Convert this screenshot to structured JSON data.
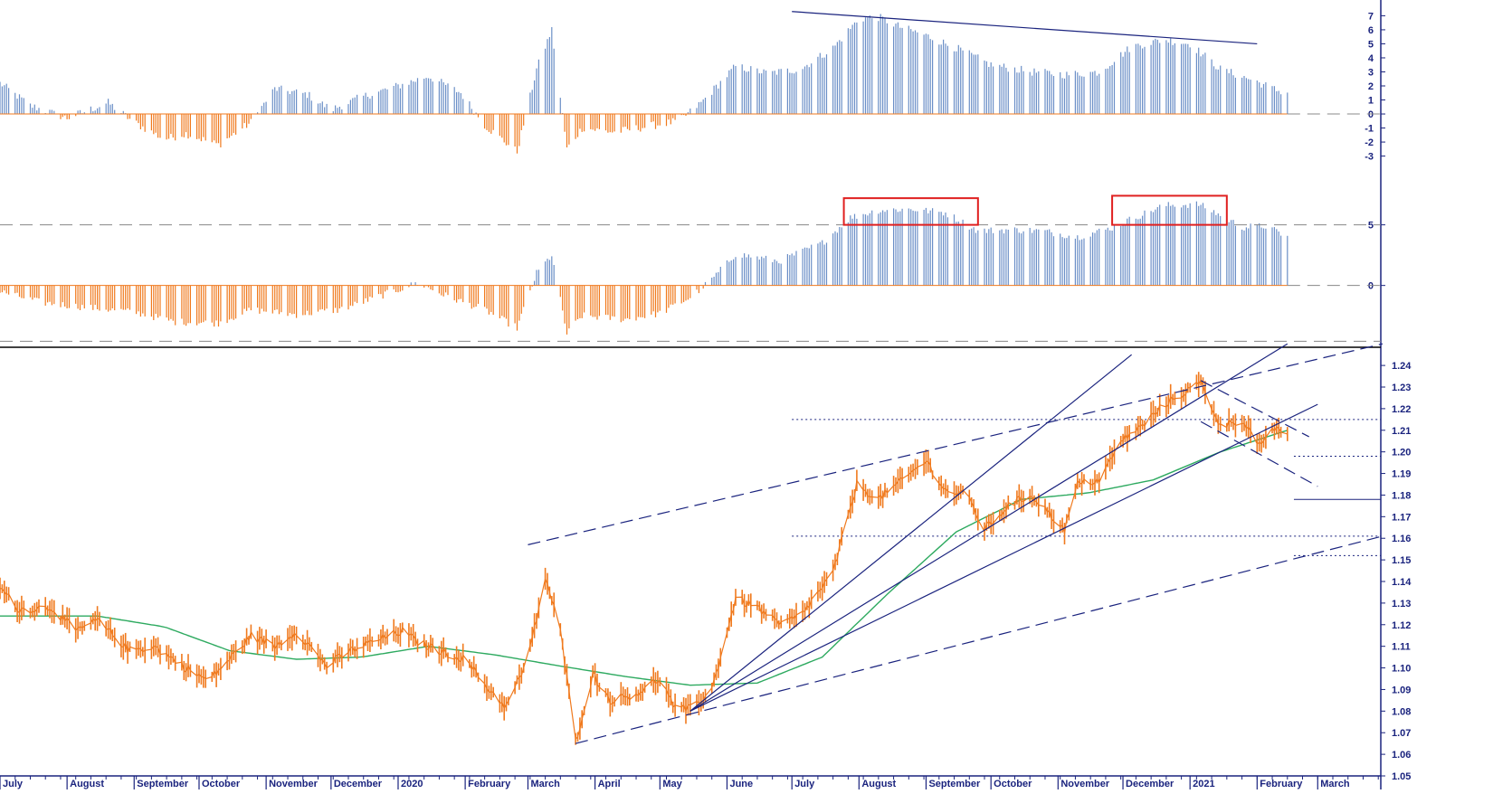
{
  "chart_data": [
    {
      "type": "bar",
      "panel": "upper-momentum",
      "yticks": [
        7,
        6,
        5,
        4,
        3,
        2,
        1,
        0,
        -1,
        -2,
        -3
      ],
      "ylim": [
        -3.8,
        7.8
      ],
      "colors": {
        "positive": "#6b8fc7",
        "negative": "#f07a1e",
        "trendline": "#1a237e"
      },
      "profile_date": [
        [
          "2019-07-01",
          2.2
        ],
        [
          "2019-07-15",
          0.6
        ],
        [
          "2019-08-01",
          -0.3
        ],
        [
          "2019-08-20",
          0.8
        ],
        [
          "2019-09-01",
          -0.6
        ],
        [
          "2019-09-15",
          -1.8
        ],
        [
          "2019-09-25",
          -1.4
        ],
        [
          "2019-10-10",
          -2.2
        ],
        [
          "2019-10-25",
          -0.6
        ],
        [
          "2019-11-05",
          1.8
        ],
        [
          "2019-11-20",
          1.4
        ],
        [
          "2019-12-01",
          0.3
        ],
        [
          "2019-12-15",
          1.2
        ],
        [
          "2020-01-01",
          2.0
        ],
        [
          "2020-01-15",
          2.7
        ],
        [
          "2020-01-30",
          1.5
        ],
        [
          "2020-02-10",
          -0.8
        ],
        [
          "2020-02-25",
          -2.7
        ],
        [
          "2020-03-05",
          3.2
        ],
        [
          "2020-03-12",
          6.0
        ],
        [
          "2020-03-19",
          -2.5
        ],
        [
          "2020-03-26",
          -1.0
        ],
        [
          "2020-04-10",
          -1.3
        ],
        [
          "2020-04-25",
          -0.9
        ],
        [
          "2020-05-10",
          -0.5
        ],
        [
          "2020-05-20",
          0.8
        ],
        [
          "2020-06-05",
          3.4
        ],
        [
          "2020-06-20",
          2.9
        ],
        [
          "2020-07-05",
          3.2
        ],
        [
          "2020-07-20",
          4.7
        ],
        [
          "2020-08-01",
          6.8
        ],
        [
          "2020-08-10",
          6.9
        ],
        [
          "2020-08-20",
          6.2
        ],
        [
          "2020-09-01",
          5.6
        ],
        [
          "2020-09-15",
          4.7
        ],
        [
          "2020-10-01",
          3.5
        ],
        [
          "2020-10-20",
          3.0
        ],
        [
          "2020-11-05",
          2.8
        ],
        [
          "2020-11-20",
          3.0
        ],
        [
          "2020-12-05",
          4.8
        ],
        [
          "2020-12-20",
          5.3
        ],
        [
          "2021-01-01",
          5.0
        ],
        [
          "2021-01-15",
          3.2
        ],
        [
          "2021-02-01",
          2.3
        ],
        [
          "2021-02-10",
          1.7
        ],
        [
          "2021-02-15",
          1.5
        ]
      ],
      "annotations": [
        {
          "type": "trendline",
          "from": [
            "2020-07-01",
            7.3
          ],
          "to": [
            "2021-02-01",
            5.0
          ]
        },
        {
          "type": "hline",
          "y": 0,
          "from": "2021-02-15",
          "to": "2021-03-31",
          "style": "dashed"
        }
      ]
    },
    {
      "type": "bar",
      "panel": "middle-oscillator",
      "yticks": [
        5,
        0
      ],
      "ylim": [
        -4.8,
        9.0
      ],
      "colors": {
        "positive": "#6b8fc7",
        "negative": "#f07a1e",
        "highlight": "#e02020"
      },
      "profile_date": [
        [
          "2019-07-01",
          -0.5
        ],
        [
          "2019-07-20",
          -1.4
        ],
        [
          "2019-08-10",
          -1.8
        ],
        [
          "2019-09-01",
          -2.2
        ],
        [
          "2019-09-20",
          -3.0
        ],
        [
          "2019-10-10",
          -3.1
        ],
        [
          "2019-10-25",
          -2.0
        ],
        [
          "2019-11-15",
          -2.4
        ],
        [
          "2019-12-05",
          -2.0
        ],
        [
          "2019-12-25",
          -0.8
        ],
        [
          "2020-01-10",
          0.2
        ],
        [
          "2020-01-25",
          -1.0
        ],
        [
          "2020-02-10",
          -2.0
        ],
        [
          "2020-02-25",
          -3.5
        ],
        [
          "2020-03-05",
          1.0
        ],
        [
          "2020-03-12",
          2.5
        ],
        [
          "2020-03-19",
          -4.0
        ],
        [
          "2020-03-26",
          -2.5
        ],
        [
          "2020-04-15",
          -2.8
        ],
        [
          "2020-05-01",
          -2.3
        ],
        [
          "2020-05-15",
          -1.0
        ],
        [
          "2020-05-25",
          0.5
        ],
        [
          "2020-06-05",
          2.6
        ],
        [
          "2020-06-25",
          2.0
        ],
        [
          "2020-07-15",
          3.5
        ],
        [
          "2020-07-28",
          5.6
        ],
        [
          "2020-08-10",
          6.2
        ],
        [
          "2020-08-25",
          6.3
        ],
        [
          "2020-09-10",
          6.0
        ],
        [
          "2020-09-25",
          4.5
        ],
        [
          "2020-10-10",
          4.6
        ],
        [
          "2020-10-25",
          4.5
        ],
        [
          "2020-11-10",
          4.0
        ],
        [
          "2020-11-25",
          4.7
        ],
        [
          "2020-12-05",
          5.5
        ],
        [
          "2020-12-20",
          6.6
        ],
        [
          "2021-01-05",
          6.7
        ],
        [
          "2021-01-15",
          5.8
        ],
        [
          "2021-01-25",
          4.8
        ],
        [
          "2021-02-05",
          4.9
        ],
        [
          "2021-02-15",
          4.0
        ]
      ],
      "annotations": [
        {
          "type": "hline",
          "y": 5,
          "style": "dashed"
        },
        {
          "type": "hline",
          "y": 0,
          "from": "2021-02-15",
          "to": "2021-03-31",
          "style": "dashed"
        },
        {
          "type": "hline",
          "y": -4.6,
          "style": "dashed"
        },
        {
          "type": "rect",
          "from": [
            "2020-07-25",
            5.0
          ],
          "to": [
            "2020-09-25",
            7.2
          ]
        },
        {
          "type": "rect",
          "from": [
            "2020-11-26",
            5.0
          ],
          "to": [
            "2021-01-18",
            7.4
          ]
        }
      ]
    },
    {
      "type": "line",
      "panel": "price",
      "ylim": [
        1.05,
        1.248
      ],
      "yticks": [
        1.24,
        1.23,
        1.22,
        1.21,
        1.2,
        1.19,
        1.18,
        1.17,
        1.16,
        1.15,
        1.14,
        1.13,
        1.12,
        1.11,
        1.1,
        1.09,
        1.08,
        1.07,
        1.06,
        1.05
      ],
      "series": [
        {
          "role": "price",
          "color": "#f07a1e",
          "profile_date": [
            [
              "2019-07-01",
              1.137
            ],
            [
              "2019-07-10",
              1.127
            ],
            [
              "2019-07-25",
              1.128
            ],
            [
              "2019-08-05",
              1.117
            ],
            [
              "2019-08-15",
              1.122
            ],
            [
              "2019-08-30",
              1.108
            ],
            [
              "2019-09-10",
              1.11
            ],
            [
              "2019-09-25",
              1.1
            ],
            [
              "2019-10-05",
              1.094
            ],
            [
              "2019-10-15",
              1.104
            ],
            [
              "2019-10-25",
              1.115
            ],
            [
              "2019-11-05",
              1.11
            ],
            [
              "2019-11-15",
              1.117
            ],
            [
              "2019-11-29",
              1.101
            ],
            [
              "2019-12-10",
              1.108
            ],
            [
              "2019-12-20",
              1.112
            ],
            [
              "2020-01-03",
              1.117
            ],
            [
              "2020-01-10",
              1.112
            ],
            [
              "2020-01-20",
              1.108
            ],
            [
              "2020-02-01",
              1.104
            ],
            [
              "2020-02-12",
              1.09
            ],
            [
              "2020-02-20",
              1.082
            ],
            [
              "2020-03-01",
              1.104
            ],
            [
              "2020-03-09",
              1.142
            ],
            [
              "2020-03-16",
              1.117
            ],
            [
              "2020-03-23",
              1.066
            ],
            [
              "2020-03-31",
              1.097
            ],
            [
              "2020-04-08",
              1.085
            ],
            [
              "2020-04-20",
              1.088
            ],
            [
              "2020-05-01",
              1.095
            ],
            [
              "2020-05-08",
              1.081
            ],
            [
              "2020-05-15",
              1.081
            ],
            [
              "2020-05-25",
              1.09
            ],
            [
              "2020-06-05",
              1.132
            ],
            [
              "2020-06-15",
              1.128
            ],
            [
              "2020-06-25",
              1.12
            ],
            [
              "2020-07-05",
              1.124
            ],
            [
              "2020-07-20",
              1.144
            ],
            [
              "2020-07-31",
              1.185
            ],
            [
              "2020-08-10",
              1.178
            ],
            [
              "2020-08-20",
              1.186
            ],
            [
              "2020-09-01",
              1.196
            ],
            [
              "2020-09-10",
              1.182
            ],
            [
              "2020-09-20",
              1.18
            ],
            [
              "2020-09-28",
              1.164
            ],
            [
              "2020-10-10",
              1.176
            ],
            [
              "2020-10-20",
              1.18
            ],
            [
              "2020-11-04",
              1.164
            ],
            [
              "2020-11-10",
              1.185
            ],
            [
              "2020-11-20",
              1.187
            ],
            [
              "2020-12-01",
              1.206
            ],
            [
              "2020-12-10",
              1.212
            ],
            [
              "2020-12-20",
              1.222
            ],
            [
              "2021-01-06",
              1.232
            ],
            [
              "2021-01-15",
              1.212
            ],
            [
              "2021-01-25",
              1.215
            ],
            [
              "2021-02-03",
              1.202
            ],
            [
              "2021-02-10",
              1.212
            ],
            [
              "2021-02-15",
              1.207
            ]
          ]
        },
        {
          "role": "moving-average",
          "color": "#2eaa60",
          "profile_date": [
            [
              "2019-07-01",
              1.124
            ],
            [
              "2019-08-15",
              1.124
            ],
            [
              "2019-09-15",
              1.119
            ],
            [
              "2019-10-15",
              1.108
            ],
            [
              "2019-11-15",
              1.104
            ],
            [
              "2019-12-15",
              1.105
            ],
            [
              "2020-01-15",
              1.11
            ],
            [
              "2020-02-15",
              1.106
            ],
            [
              "2020-03-15",
              1.101
            ],
            [
              "2020-04-15",
              1.096
            ],
            [
              "2020-05-15",
              1.092
            ],
            [
              "2020-06-15",
              1.093
            ],
            [
              "2020-07-15",
              1.105
            ],
            [
              "2020-08-15",
              1.135
            ],
            [
              "2020-09-15",
              1.163
            ],
            [
              "2020-10-15",
              1.178
            ],
            [
              "2020-11-15",
              1.181
            ],
            [
              "2020-12-15",
              1.187
            ],
            [
              "2021-01-15",
              1.2
            ],
            [
              "2021-02-15",
              1.21
            ]
          ]
        }
      ],
      "annotations": [
        {
          "type": "trendline",
          "style": "dashed",
          "from": [
            "2020-03-01",
            1.157
          ],
          "to": [
            "2021-03-31",
            1.25
          ]
        },
        {
          "type": "trendline",
          "style": "dashed",
          "from": [
            "2020-03-23",
            1.065
          ],
          "to": [
            "2021-03-31",
            1.161
          ]
        },
        {
          "type": "trendline",
          "style": "solid",
          "from": [
            "2020-05-15",
            1.08
          ],
          "to": [
            "2020-12-05",
            1.245
          ]
        },
        {
          "type": "trendline",
          "style": "solid",
          "from": [
            "2020-05-15",
            1.08
          ],
          "to": [
            "2021-02-15",
            1.25
          ]
        },
        {
          "type": "trendline",
          "style": "solid",
          "from": [
            "2020-05-15",
            1.08
          ],
          "to": [
            "2021-03-01",
            1.222
          ]
        },
        {
          "type": "trendline",
          "style": "dashed",
          "from": [
            "2021-01-06",
            1.233
          ],
          "to": [
            "2021-02-25",
            1.207
          ]
        },
        {
          "type": "trendline",
          "style": "dashed",
          "from": [
            "2021-01-06",
            1.214
          ],
          "to": [
            "2021-03-01",
            1.184
          ]
        },
        {
          "type": "hline",
          "style": "dotted",
          "y": 1.215,
          "from": "2020-07-01",
          "to": "2021-03-31"
        },
        {
          "type": "hline",
          "style": "dotted",
          "y": 1.161,
          "from": "2020-07-01",
          "to": "2021-03-31"
        },
        {
          "type": "hline",
          "style": "dotted",
          "y": 1.198,
          "from": "2021-02-18",
          "to": "2021-03-31"
        },
        {
          "type": "hline",
          "style": "solid",
          "y": 1.178,
          "from": "2021-02-18",
          "to": "2021-03-31"
        },
        {
          "type": "hline",
          "style": "dotted",
          "y": 1.152,
          "from": "2021-02-18",
          "to": "2021-03-31"
        }
      ]
    }
  ],
  "x_axis": {
    "start": "2019-07-01",
    "end": "2021-03-31",
    "months": [
      {
        "label": "July",
        "start": "2019-07-01"
      },
      {
        "label": "August",
        "start": "2019-08-01"
      },
      {
        "label": "September",
        "start": "2019-09-01"
      },
      {
        "label": "October",
        "start": "2019-10-01"
      },
      {
        "label": "November",
        "start": "2019-11-01"
      },
      {
        "label": "December",
        "start": "2019-12-01"
      },
      {
        "label": "2020",
        "start": "2020-01-01"
      },
      {
        "label": "February",
        "start": "2020-02-01"
      },
      {
        "label": "March",
        "start": "2020-03-01"
      },
      {
        "label": "April",
        "start": "2020-04-01"
      },
      {
        "label": "May",
        "start": "2020-05-01"
      },
      {
        "label": "June",
        "start": "2020-06-01"
      },
      {
        "label": "July",
        "start": "2020-07-01"
      },
      {
        "label": "August",
        "start": "2020-08-01"
      },
      {
        "label": "September",
        "start": "2020-09-01"
      },
      {
        "label": "October",
        "start": "2020-10-01"
      },
      {
        "label": "November",
        "start": "2020-11-01"
      },
      {
        "label": "December",
        "start": "2020-12-01"
      },
      {
        "label": "2021",
        "start": "2021-01-01"
      },
      {
        "label": "February",
        "start": "2021-02-01"
      },
      {
        "label": "March",
        "start": "2021-03-01"
      }
    ]
  },
  "colors": {
    "axis": "#1a237e",
    "label": "#1a237e"
  }
}
